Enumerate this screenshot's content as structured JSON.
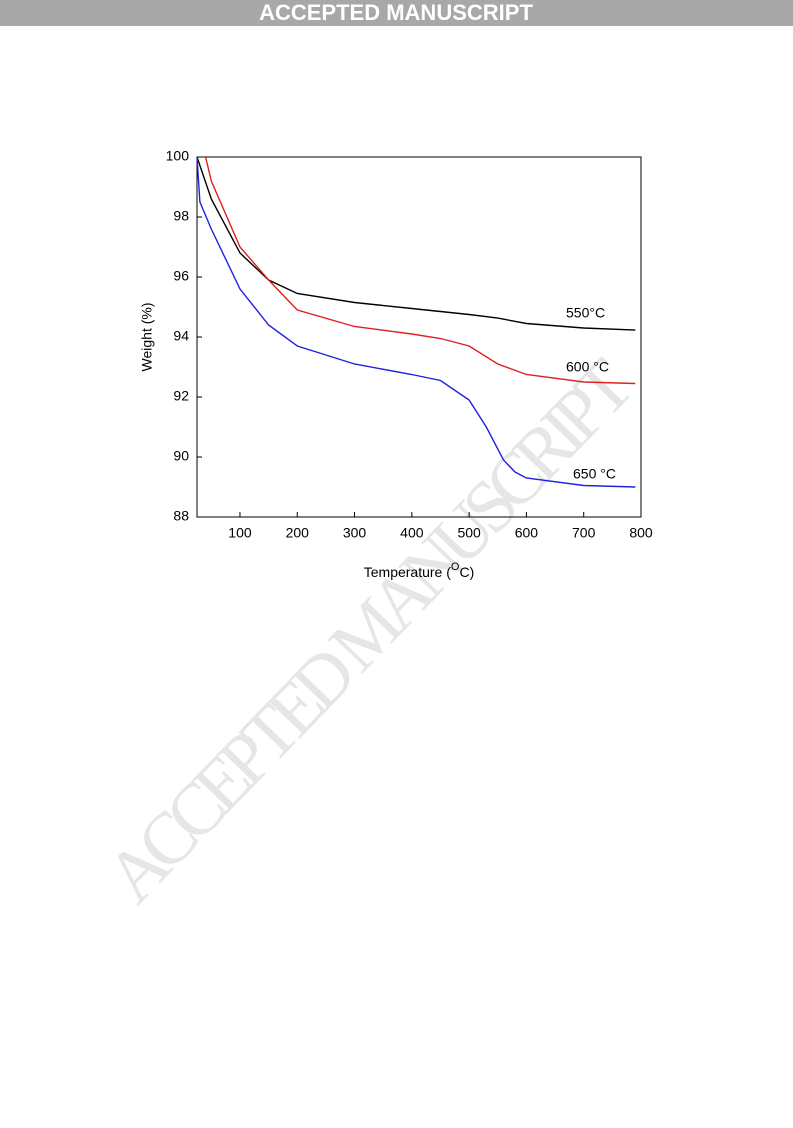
{
  "header": {
    "title": "ACCEPTED MANUSCRIPT"
  },
  "watermark": "ACCEPTED MANUSCRIPT",
  "chart_data": {
    "type": "line",
    "ylabel": "Weight (%)",
    "xlabel": {
      "text": "Temperature (",
      "sup": "O",
      "tail": "C)"
    },
    "xlim": [
      25,
      800
    ],
    "xticks": [
      100,
      200,
      300,
      400,
      500,
      600,
      700,
      800
    ],
    "ylim": [
      88,
      100
    ],
    "yticks": [
      88,
      90,
      92,
      94,
      96,
      98,
      100
    ],
    "annotations": [
      "550°C",
      "600 °C",
      "650 °C"
    ],
    "series": [
      {
        "name": "550°C",
        "color": "#000000",
        "x": [
          25,
          50,
          100,
          150,
          200,
          300,
          400,
          500,
          550,
          600,
          700,
          790
        ],
        "values": [
          100,
          98.6,
          96.8,
          95.9,
          95.45,
          95.15,
          94.95,
          94.75,
          94.63,
          94.45,
          94.3,
          94.23
        ]
      },
      {
        "name": "600 °C",
        "color": "#e02020",
        "x": [
          40,
          50,
          100,
          150,
          200,
          300,
          400,
          450,
          500,
          550,
          600,
          700,
          790
        ],
        "values": [
          100,
          99.2,
          97.0,
          95.9,
          94.9,
          94.35,
          94.1,
          93.95,
          93.7,
          93.1,
          92.75,
          92.5,
          92.45
        ]
      },
      {
        "name": "650 °C",
        "color": "#2020e0",
        "x": [
          25,
          30,
          50,
          100,
          150,
          200,
          300,
          400,
          450,
          500,
          530,
          560,
          580,
          600,
          700,
          790
        ],
        "values": [
          100,
          98.5,
          97.6,
          95.6,
          94.4,
          93.7,
          93.1,
          92.75,
          92.55,
          91.9,
          91.0,
          89.9,
          89.5,
          89.3,
          89.05,
          89.0
        ]
      }
    ]
  }
}
